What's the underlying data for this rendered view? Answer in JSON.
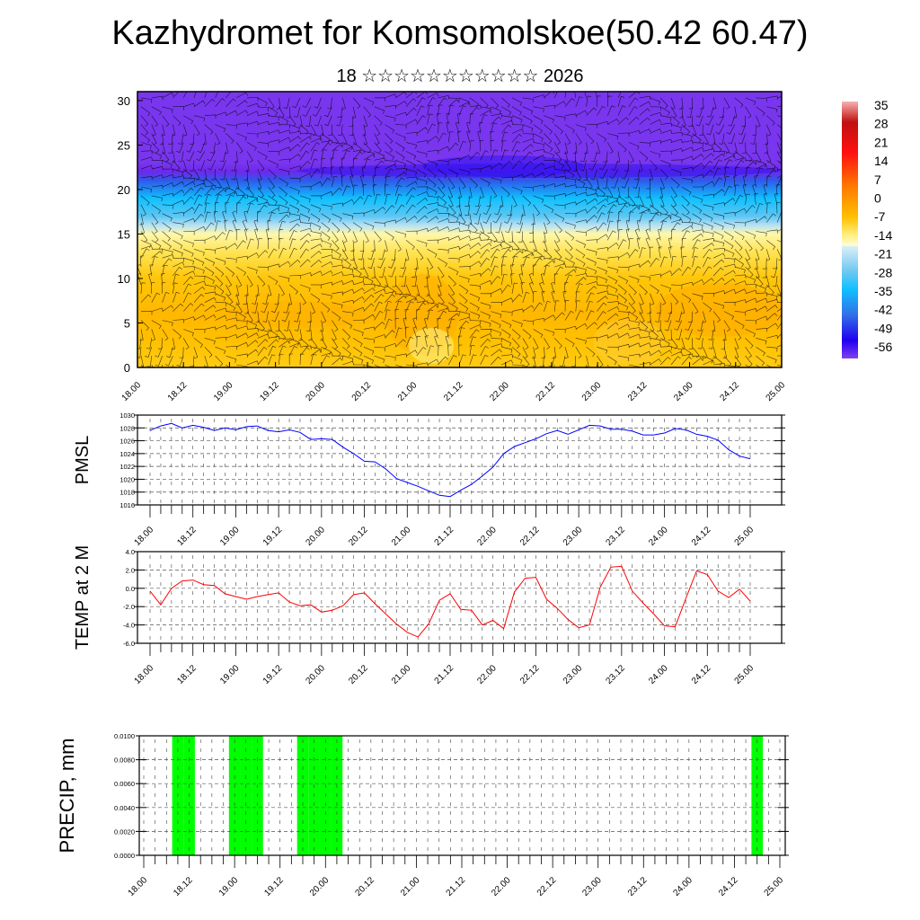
{
  "title": "Kazhydromet for Komsomolskoe(50.42 60.47)",
  "subtitle": "18 ☆☆☆☆☆☆☆☆☆☆☆ 2026",
  "chart_data": [
    {
      "type": "heatmap",
      "title": "Vertical cross-section: temperature with wind barbs",
      "x_tick_labels": [
        "18.00",
        "18.12",
        "19.00",
        "19.12",
        "20.00",
        "20.12",
        "21.00",
        "21.12",
        "22.00",
        "22.12",
        "23.00",
        "23.12",
        "24.00",
        "24.12",
        "25.00"
      ],
      "y_tick_labels": [
        "0",
        "5",
        "10",
        "15",
        "20",
        "25",
        "30"
      ],
      "ylim": [
        0,
        31
      ],
      "colorbar": {
        "labels": [
          "35",
          "28",
          "21",
          "14",
          "7",
          "0",
          "-7",
          "-14",
          "-21",
          "-28",
          "-35",
          "-42",
          "-49",
          "-56"
        ],
        "range": [
          -60,
          37
        ]
      },
      "approx_field": {
        "levels": [
          0,
          3,
          6,
          10,
          13,
          15,
          16,
          17,
          19,
          21,
          22,
          23,
          31
        ],
        "temperature": [
          -2,
          0,
          2,
          -1,
          -6,
          -11,
          -16,
          -22,
          -30,
          -42,
          -55,
          -58,
          -58
        ]
      }
    },
    {
      "type": "line",
      "ylabel": "PMSL",
      "ylim": [
        1016,
        1030
      ],
      "y_tick_labels": [
        "1016",
        "1018",
        "1020",
        "1022",
        "1024",
        "1026",
        "1028",
        "1030"
      ],
      "x_tick_labels": [
        "18.00",
        "18.12",
        "19.00",
        "19.12",
        "20.00",
        "20.12",
        "21.00",
        "21.12",
        "22.00",
        "22.12",
        "23.00",
        "23.12",
        "24.00",
        "24.12",
        "25.00"
      ],
      "step_hours": 3,
      "color": "#0000ff",
      "values": [
        1027.6,
        1028.3,
        1028.7,
        1028.0,
        1028.4,
        1028.1,
        1027.6,
        1028.0,
        1027.7,
        1028.2,
        1028.3,
        1027.6,
        1027.4,
        1027.7,
        1027.3,
        1026.2,
        1026.3,
        1026.2,
        1025.0,
        1024.0,
        1022.8,
        1022.7,
        1021.6,
        1020.1,
        1019.5,
        1018.9,
        1018.2,
        1017.5,
        1017.3,
        1018.3,
        1019.2,
        1020.5,
        1021.9,
        1024.0,
        1025.1,
        1025.7,
        1026.3,
        1027.1,
        1027.6,
        1027.0,
        1027.7,
        1028.4,
        1028.3,
        1027.8,
        1027.8,
        1027.5,
        1026.9,
        1026.9,
        1027.2,
        1027.9,
        1027.7,
        1027.0,
        1026.7,
        1026.1,
        1024.6,
        1023.6,
        1023.2
      ]
    },
    {
      "type": "line",
      "ylabel": "TEMP at 2 M",
      "ylim": [
        -6,
        4
      ],
      "y_tick_labels": [
        "-6.0",
        "-4.0",
        "-2.0",
        "0.0",
        "2.0",
        "4.0"
      ],
      "x_tick_labels": [
        "18.00",
        "18.12",
        "19.00",
        "19.12",
        "20.00",
        "20.12",
        "21.00",
        "21.12",
        "22.00",
        "22.12",
        "23.00",
        "23.12",
        "24.00",
        "24.12",
        "25.00"
      ],
      "step_hours": 3,
      "color": "#ff0000",
      "values": [
        -0.3,
        -1.8,
        0.0,
        0.8,
        0.9,
        0.4,
        0.3,
        -0.6,
        -0.9,
        -1.2,
        -0.9,
        -0.7,
        -0.5,
        -1.5,
        -1.9,
        -1.8,
        -2.6,
        -2.4,
        -1.9,
        -0.7,
        -0.5,
        -1.7,
        -2.8,
        -3.9,
        -4.8,
        -5.3,
        -3.9,
        -1.3,
        -0.6,
        -2.3,
        -2.4,
        -4.0,
        -3.5,
        -4.4,
        -0.4,
        1.1,
        1.2,
        -1.2,
        -2.2,
        -3.4,
        -4.3,
        -4.0,
        0.1,
        2.3,
        2.4,
        -0.3,
        -1.6,
        -2.8,
        -4.1,
        -4.2,
        -1.1,
        1.9,
        1.5,
        -0.3,
        -1.0,
        -0.1,
        -1.4
      ]
    },
    {
      "type": "bar",
      "ylabel": "PRECIP, mm",
      "ylim": [
        0,
        0.01
      ],
      "y_tick_labels": [
        "0.0000",
        "0.0020",
        "0.0040",
        "0.0060",
        "0.0080",
        "0.0100"
      ],
      "x_tick_labels": [
        "18.00",
        "18.12",
        "19.00",
        "19.12",
        "20.00",
        "20.12",
        "21.00",
        "21.12",
        "22.00",
        "22.12",
        "23.00",
        "23.12",
        "24.00",
        "24.12",
        "25.00"
      ],
      "step_hours": 3,
      "color": "#00ff00",
      "nonzero_steps": [
        3,
        4,
        8,
        9,
        10,
        14,
        15,
        16,
        17,
        54
      ],
      "values_at_steps": [
        0.01,
        0.01,
        0.01,
        0.01,
        0.01,
        0.01,
        0.01,
        0.01,
        0.01,
        0.01
      ]
    }
  ]
}
